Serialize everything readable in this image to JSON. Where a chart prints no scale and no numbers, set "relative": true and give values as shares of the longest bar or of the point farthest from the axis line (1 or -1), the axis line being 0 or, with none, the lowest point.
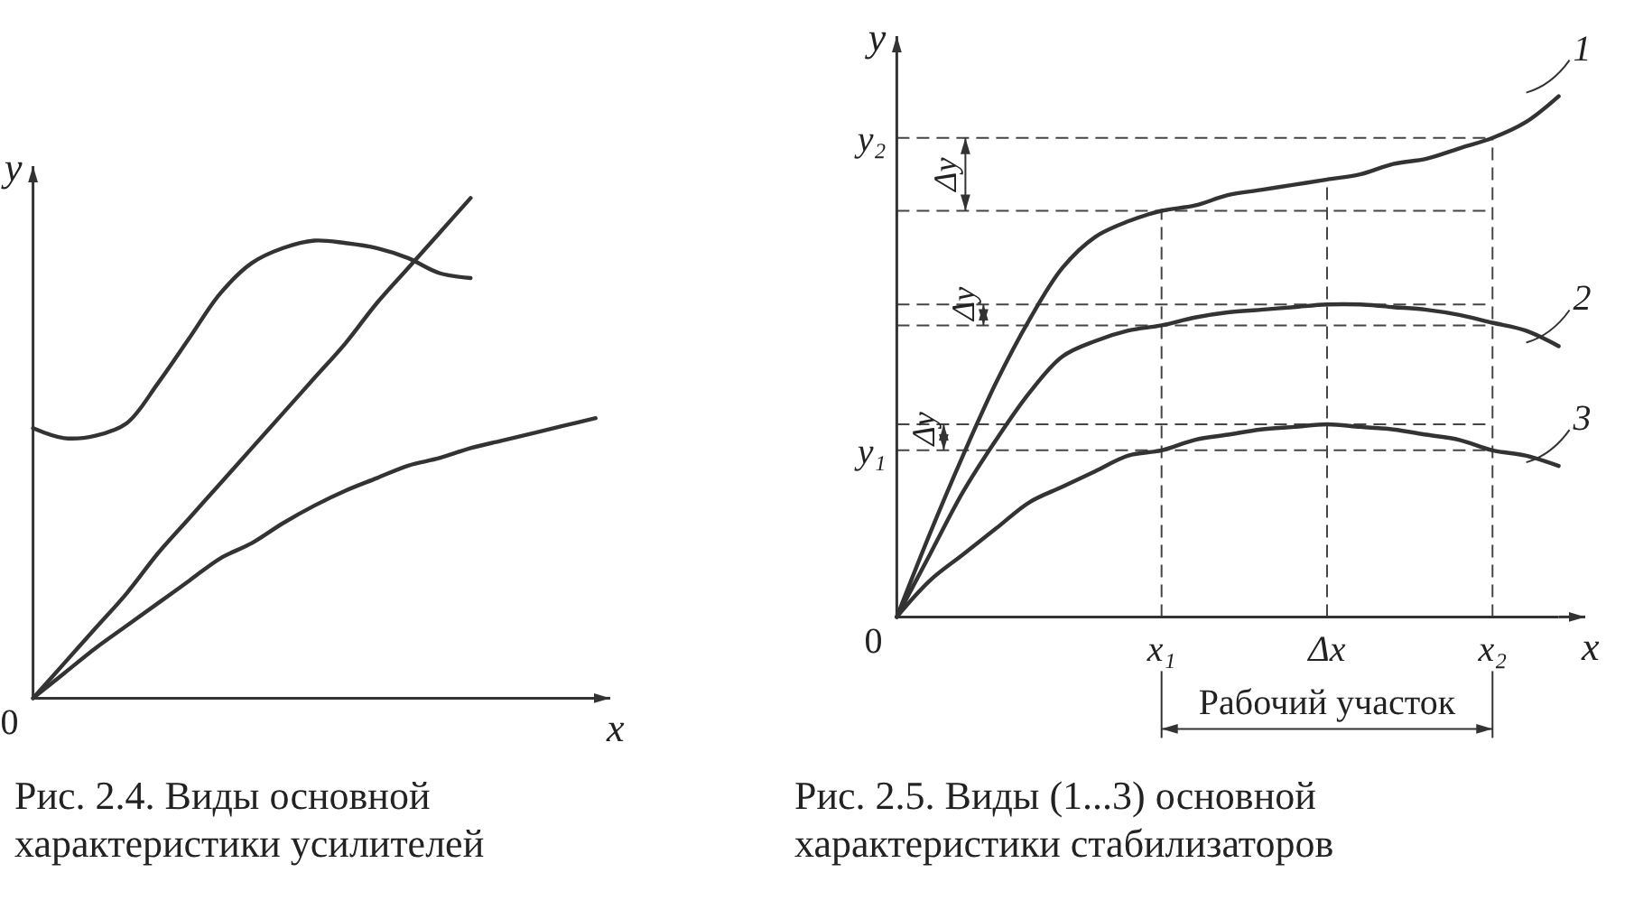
{
  "chart_data": [
    {
      "type": "line",
      "title": "Рис. 2.4. Виды основной характеристики усилителей",
      "xlabel": "x",
      "ylabel": "y",
      "relative": true,
      "annotations": [
        "0"
      ],
      "categories": [
        null,
        null,
        null,
        null,
        null,
        null,
        null,
        null,
        null,
        null,
        null,
        null,
        null,
        null,
        null,
        null,
        null,
        null,
        null
      ],
      "series": [
        {
          "color": "#333333",
          "values": [
            0.54,
            0.52,
            0.525,
            0.55,
            0.63,
            0.72,
            0.81,
            0.87,
            0.9,
            0.915,
            0.91,
            0.9,
            0.88,
            0.85,
            0.84,
            null,
            null,
            null,
            null
          ]
        },
        {
          "color": "#333333",
          "values": [
            0,
            0.07,
            0.14,
            0.21,
            0.29,
            0.36,
            0.43,
            0.5,
            0.57,
            0.64,
            0.71,
            0.79,
            0.86,
            0.93,
            1,
            null,
            null,
            null,
            null
          ]
        },
        {
          "color": "#333333",
          "values": [
            0,
            0.05,
            0.1,
            0.145,
            0.19,
            0.235,
            0.28,
            0.31,
            0.35,
            0.385,
            0.415,
            0.44,
            0.465,
            0.48,
            0.5,
            0.515,
            0.53,
            0.545,
            0.56
          ]
        }
      ]
    },
    {
      "type": "line",
      "title": "Рис. 2.5. Виды (1...3) основной характеристики стабилизаторов",
      "xlabel": "x",
      "ylabel": "y",
      "relative": true,
      "annotations": [
        "0",
        "Δy",
        "Δy",
        "Δy",
        "Рабочий участок"
      ],
      "categories": [
        null,
        null,
        null,
        null,
        null,
        null,
        null,
        null,
        "x₁",
        null,
        null,
        null,
        null,
        "Δx",
        null,
        null,
        null,
        null,
        "x₂",
        null,
        null
      ],
      "series": [
        {
          "name": "1",
          "color": "#333333",
          "values": [
            0,
            0.16,
            0.31,
            0.45,
            0.57,
            0.67,
            0.73,
            0.76,
            0.78,
            0.79,
            0.81,
            0.82,
            0.83,
            0.84,
            0.85,
            0.87,
            0.88,
            0.9,
            0.92,
            0.95,
            1
          ]
        },
        {
          "name": "2",
          "color": "#333333",
          "values": [
            0,
            0.12,
            0.24,
            0.34,
            0.43,
            0.5,
            0.53,
            0.55,
            0.56,
            0.575,
            0.585,
            0.59,
            0.595,
            0.6,
            0.6,
            0.595,
            0.59,
            0.58,
            0.565,
            0.55,
            0.52
          ]
        },
        {
          "name": "3",
          "color": "#333333",
          "values": [
            0,
            0.07,
            0.12,
            0.17,
            0.22,
            0.25,
            0.28,
            0.31,
            0.32,
            0.34,
            0.35,
            0.36,
            0.365,
            0.37,
            0.365,
            0.36,
            0.35,
            0.34,
            0.32,
            0.31,
            0.29
          ]
        }
      ],
      "ref_lines": [
        {
          "axis": "y",
          "value": 0.92,
          "label": "y₂",
          "line_style": "dashed"
        },
        {
          "axis": "y",
          "value": 0.78,
          "label": null,
          "line_style": "dashed"
        },
        {
          "axis": "y",
          "value": 0.6,
          "label": null,
          "line_style": "dashed"
        },
        {
          "axis": "y",
          "value": 0.56,
          "label": null,
          "line_style": "dashed"
        },
        {
          "axis": "y",
          "value": 0.37,
          "label": null,
          "line_style": "dashed"
        },
        {
          "axis": "y",
          "value": 0.32,
          "label": "y₁",
          "line_style": "dashed"
        },
        {
          "axis": "x",
          "value": "x₁",
          "label": null,
          "line_style": "dashed"
        },
        {
          "axis": "x",
          "value": "Δx",
          "label": null,
          "line_style": "dashed"
        },
        {
          "axis": "x",
          "value": "x₂",
          "label": null,
          "line_style": "dashed"
        }
      ]
    }
  ]
}
